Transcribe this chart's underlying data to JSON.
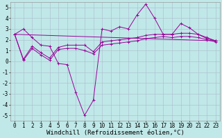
{
  "background_color": "#c0e8e8",
  "grid_color": "#aabbcc",
  "line_color": "#990099",
  "xlabel": "Windchill (Refroidissement éolien,°C)",
  "xlabel_fontsize": 6.5,
  "tick_fontsize": 5.5,
  "xlim": [
    -0.5,
    23.5
  ],
  "ylim": [
    -5.5,
    5.5
  ],
  "yticks": [
    -5,
    -4,
    -3,
    -2,
    -1,
    0,
    1,
    2,
    3,
    4,
    5
  ],
  "xticks": [
    0,
    1,
    2,
    3,
    4,
    5,
    6,
    7,
    8,
    9,
    10,
    11,
    12,
    13,
    14,
    15,
    16,
    17,
    18,
    19,
    20,
    21,
    22,
    23
  ],
  "series": [
    {
      "x": [
        0,
        1,
        2,
        3,
        4,
        5,
        6,
        7,
        8,
        9,
        10,
        11,
        12,
        13,
        14,
        15,
        16,
        17,
        18,
        19,
        20,
        21,
        22,
        23
      ],
      "y": [
        2.5,
        3.0,
        2.2,
        1.5,
        1.4,
        -0.2,
        -0.3,
        -2.9,
        -5.0,
        -3.6,
        3.0,
        2.8,
        3.2,
        3.0,
        4.3,
        5.3,
        4.0,
        2.5,
        2.5,
        3.5,
        3.1,
        2.5,
        2.1,
        1.9
      ]
    },
    {
      "x": [
        0,
        1,
        2,
        3,
        4,
        5,
        6,
        7,
        8,
        9,
        10,
        11,
        12,
        13,
        14,
        15,
        16,
        17,
        18,
        19,
        20,
        21,
        22,
        23
      ],
      "y": [
        2.5,
        0.2,
        1.4,
        0.8,
        0.3,
        1.3,
        1.5,
        1.5,
        1.5,
        0.9,
        1.8,
        1.9,
        2.0,
        2.1,
        2.2,
        2.4,
        2.5,
        2.5,
        2.5,
        2.6,
        2.6,
        2.5,
        2.2,
        1.9
      ]
    },
    {
      "x": [
        0,
        1,
        2,
        3,
        4,
        5,
        6,
        7,
        8,
        9,
        10,
        11,
        12,
        13,
        14,
        15,
        16,
        17,
        18,
        19,
        20,
        21,
        22,
        23
      ],
      "y": [
        2.5,
        0.1,
        1.2,
        0.6,
        0.1,
        1.1,
        1.2,
        1.2,
        1.0,
        0.7,
        1.5,
        1.6,
        1.7,
        1.8,
        1.9,
        2.1,
        2.2,
        2.3,
        2.2,
        2.3,
        2.3,
        2.2,
        2.0,
        1.8
      ]
    },
    {
      "x": [
        0,
        23
      ],
      "y": [
        2.5,
        1.9
      ]
    }
  ]
}
